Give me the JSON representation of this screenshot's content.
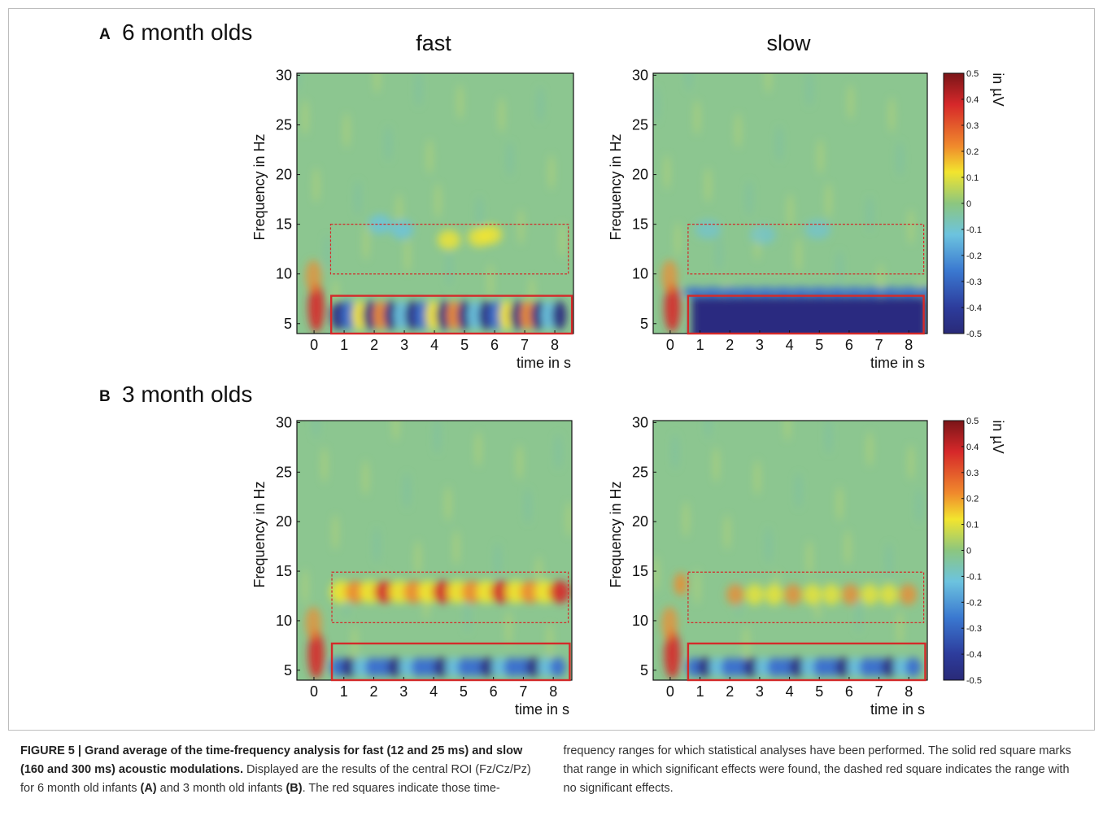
{
  "figure": {
    "colorbar": {
      "label": "in µV",
      "lim": [
        -0.5,
        0.5
      ],
      "ticks": [
        0.5,
        0.4,
        0.3,
        0.2,
        0.1,
        0,
        -0.1,
        -0.2,
        -0.3,
        -0.4,
        -0.5
      ]
    },
    "panels": [
      {
        "label": "A",
        "title": "6 month olds",
        "plots": [
          {
            "title": "fast",
            "ylabel": "Frequency in Hz",
            "xlabel": "time in s",
            "xlim": [
              -0.57,
              8.62
            ],
            "ylim": [
              4,
              30.2
            ],
            "xticks": [
              0,
              1,
              2,
              3,
              4,
              5,
              6,
              7,
              8
            ],
            "yticks": [
              5,
              10,
              15,
              20,
              25,
              30
            ],
            "boxes": [
              {
                "style": "dashed",
                "x": [
                  0.55,
                  8.45
                ],
                "y": [
                  10,
                  15
                ]
              },
              {
                "style": "solid",
                "x": [
                  0.57,
                  8.57
                ],
                "y": [
                  4,
                  7.8
                ]
              }
            ]
          },
          {
            "title": "slow",
            "ylabel": "Frequency in Hz",
            "xlabel": "time in s",
            "xlim": [
              -0.57,
              8.62
            ],
            "ylim": [
              4,
              30.2
            ],
            "xticks": [
              0,
              1,
              2,
              3,
              4,
              5,
              6,
              7,
              8
            ],
            "yticks": [
              5,
              10,
              15,
              20,
              25,
              30
            ],
            "boxes": [
              {
                "style": "dashed",
                "x": [
                  0.6,
                  8.5
                ],
                "y": [
                  10,
                  15
                ]
              },
              {
                "style": "solid",
                "x": [
                  0.6,
                  8.5
                ],
                "y": [
                  4,
                  7.8
                ]
              }
            ]
          }
        ]
      },
      {
        "label": "B",
        "title": "3 month olds",
        "plots": [
          {
            "ylabel": "Frequency in Hz",
            "xlabel": "time in s",
            "xlim": [
              -0.57,
              8.62
            ],
            "ylim": [
              4,
              30.2
            ],
            "xticks": [
              0,
              1,
              2,
              3,
              4,
              5,
              6,
              7,
              8
            ],
            "yticks": [
              5,
              10,
              15,
              20,
              25,
              30
            ],
            "boxes": [
              {
                "style": "dashed",
                "x": [
                  0.6,
                  8.5
                ],
                "y": [
                  9.8,
                  14.9
                ]
              },
              {
                "style": "solid",
                "x": [
                  0.6,
                  8.55
                ],
                "y": [
                  4,
                  7.7
                ]
              }
            ]
          },
          {
            "ylabel": "Frequency in Hz",
            "xlabel": "time in s",
            "xlim": [
              -0.57,
              8.62
            ],
            "ylim": [
              4,
              30.2
            ],
            "xticks": [
              0,
              1,
              2,
              3,
              4,
              5,
              6,
              7,
              8
            ],
            "yticks": [
              5,
              10,
              15,
              20,
              25,
              30
            ],
            "boxes": [
              {
                "style": "dashed",
                "x": [
                  0.6,
                  8.5
                ],
                "y": [
                  9.8,
                  14.9
                ]
              },
              {
                "style": "solid",
                "x": [
                  0.6,
                  8.55
                ],
                "y": [
                  4,
                  7.7
                ]
              }
            ]
          }
        ]
      }
    ]
  },
  "caption": {
    "segments": [
      {
        "text": "FIGURE 5 | Grand average of the time-frequency analysis for fast (12 and 25 ms) and slow (160 and 300 ms) acoustic modulations.",
        "bold": true
      },
      {
        "text": " Displayed are the results of the central ROI (Fz/Cz/Pz) for 6 month old infants ",
        "bold": false
      },
      {
        "text": "(A)",
        "bold": true
      },
      {
        "text": " and 3 month old infants ",
        "bold": false
      },
      {
        "text": "(B)",
        "bold": true
      },
      {
        "text": ". The red squares indicate those time-frequency ranges for which statistical analyses have been performed. The solid red square marks that range in which significant effects were found, the dashed red square indicates the range with no significant effects.",
        "bold": false
      }
    ]
  }
}
